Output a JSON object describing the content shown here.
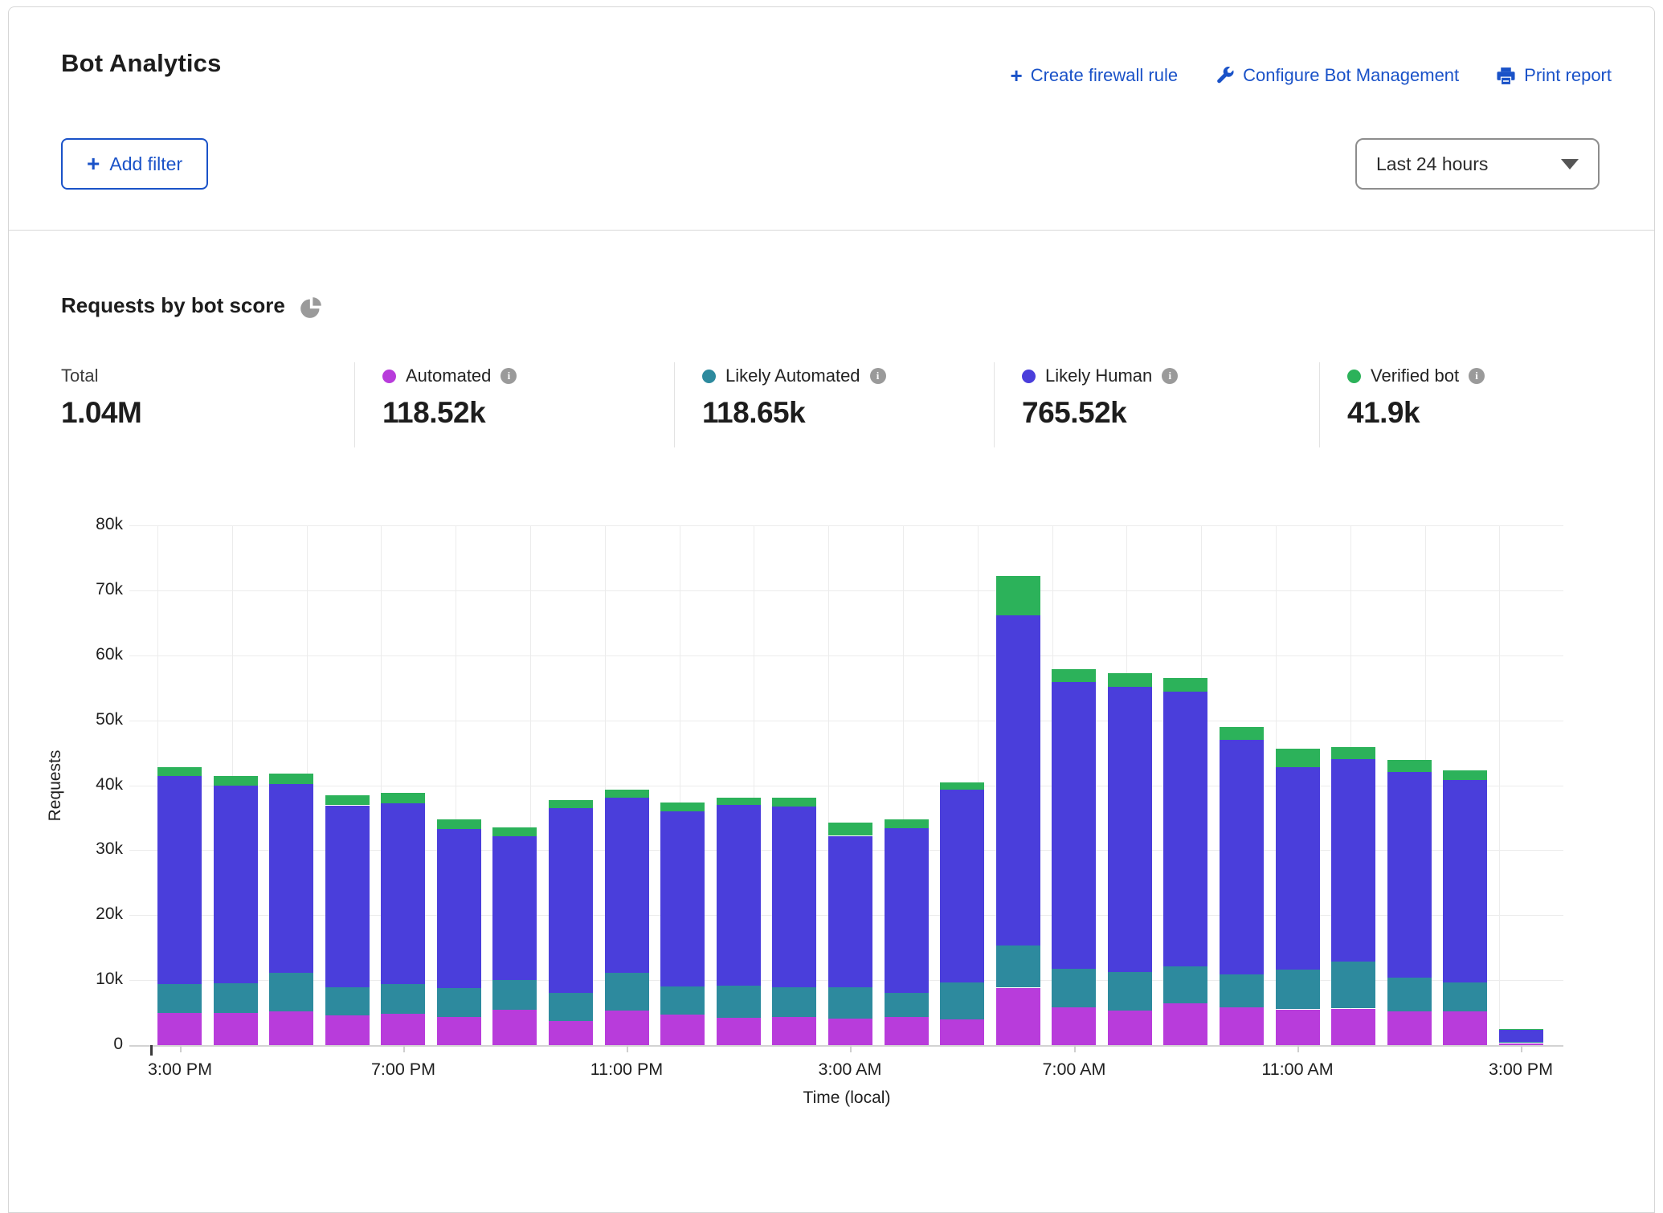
{
  "header": {
    "title": "Bot Analytics",
    "actions": [
      {
        "label": "Create firewall rule",
        "icon": "plus-icon"
      },
      {
        "label": "Configure Bot Management",
        "icon": "wrench-icon"
      },
      {
        "label": "Print report",
        "icon": "printer-icon"
      }
    ]
  },
  "toolbar": {
    "add_filter_label": "Add filter",
    "time_range_value": "Last 24 hours"
  },
  "section": {
    "title": "Requests by bot score",
    "icon": "pie-chart-icon"
  },
  "stats": {
    "total": {
      "label": "Total",
      "value": "1.04M"
    },
    "items": [
      {
        "label": "Automated",
        "value": "118.52k",
        "color": "#b83cdb"
      },
      {
        "label": "Likely Automated",
        "value": "118.65k",
        "color": "#2d8a9e"
      },
      {
        "label": "Likely Human",
        "value": "765.52k",
        "color": "#4a3edb"
      },
      {
        "label": "Verified bot",
        "value": "41.9k",
        "color": "#2cb25a"
      }
    ]
  },
  "chart_data": {
    "type": "bar",
    "stacked": true,
    "title": "Requests by bot score",
    "xlabel": "Time (local)",
    "ylabel": "Requests",
    "ylim": [
      0,
      80000
    ],
    "ytick_labels": [
      "0",
      "10k",
      "20k",
      "30k",
      "40k",
      "50k",
      "60k",
      "70k",
      "80k"
    ],
    "x_labeled_every": 4,
    "legend_position": "top",
    "grid": true,
    "x": [
      "3:00 PM",
      "4:00 PM",
      "5:00 PM",
      "6:00 PM",
      "7:00 PM",
      "8:00 PM",
      "9:00 PM",
      "10:00 PM",
      "11:00 PM",
      "12:00 AM",
      "1:00 AM",
      "2:00 AM",
      "3:00 AM",
      "4:00 AM",
      "5:00 AM",
      "6:00 AM",
      "7:00 AM",
      "8:00 AM",
      "9:00 AM",
      "10:00 AM",
      "11:00 AM",
      "12:00 PM",
      "1:00 PM",
      "2:00 PM",
      "3:00 PM"
    ],
    "series": [
      {
        "name": "Automated",
        "color": "#b83cdb",
        "values": [
          4900,
          4900,
          5200,
          4600,
          4800,
          4400,
          5400,
          3700,
          5300,
          4700,
          4200,
          4300,
          4100,
          4300,
          3900,
          8800,
          5800,
          5300,
          6400,
          5800,
          5500,
          5600,
          5200,
          5200,
          300
        ]
      },
      {
        "name": "Likely Automated",
        "color": "#2d8a9e",
        "values": [
          4500,
          4600,
          5900,
          4400,
          4600,
          4400,
          4700,
          4300,
          5900,
          4300,
          5000,
          4600,
          4800,
          3700,
          5700,
          6600,
          5900,
          5900,
          5700,
          5100,
          6200,
          7200,
          5200,
          4400,
          300
        ]
      },
      {
        "name": "Likely Human",
        "color": "#4a3edb",
        "values": [
          32000,
          30400,
          29100,
          27900,
          27800,
          24500,
          22100,
          28500,
          26900,
          27000,
          27800,
          27900,
          23300,
          25500,
          29700,
          50800,
          44200,
          43900,
          42300,
          36100,
          31100,
          31300,
          31600,
          31200,
          1800
        ]
      },
      {
        "name": "Verified bot",
        "color": "#2cb25a",
        "values": [
          1400,
          1500,
          1600,
          1500,
          1600,
          1500,
          1300,
          1200,
          1200,
          1300,
          1100,
          1300,
          2000,
          1300,
          1100,
          6000,
          2000,
          2100,
          2100,
          2000,
          2800,
          1800,
          1900,
          1500,
          100
        ]
      }
    ]
  }
}
